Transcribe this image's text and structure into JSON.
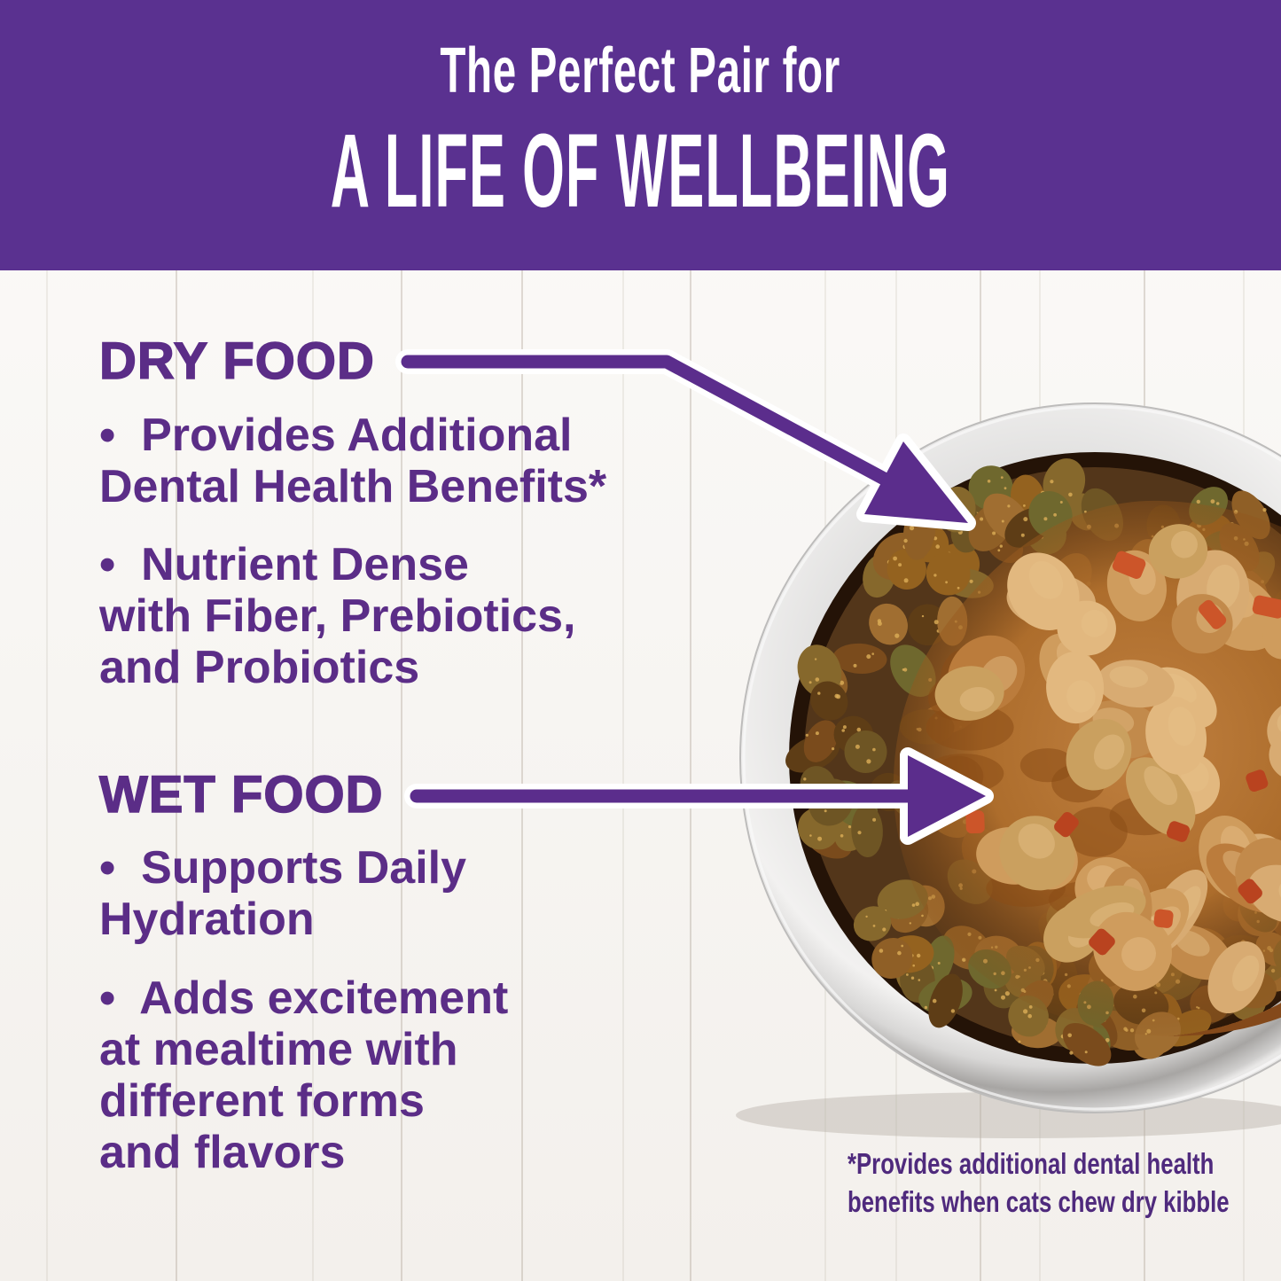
{
  "header": {
    "eyebrow": "The Perfect Pair for",
    "title": "A LIFE OF WELLBEING"
  },
  "sections": [
    {
      "id": "dry-food",
      "heading": "DRY FOOD",
      "bullets": [
        "•  Provides Additional\nDental Health Benefits*",
        "•  Nutrient Dense\nwith Fiber, Prebiotics,\nand Probiotics"
      ]
    },
    {
      "id": "wet-food",
      "heading": "WET FOOD",
      "bullets": [
        "•  Supports Daily\nHydration",
        "•  Adds excitement\nat mealtime with\ndifferent forms\nand flavors"
      ]
    }
  ],
  "footnote": "*Provides additional dental health\nbenefits when cats chew dry kibble",
  "image": {
    "description": "Stainless steel bowl filled with dry kibble ring topped with wet food chunks in gravy with red carrot pieces"
  },
  "colors": {
    "band_purple": "#5a3190",
    "text_purple": "#5b2d87",
    "arrow_purple": "#5b2d8c",
    "footnote_purple": "#4f2a7d",
    "background_white": "#fbfaf8"
  }
}
